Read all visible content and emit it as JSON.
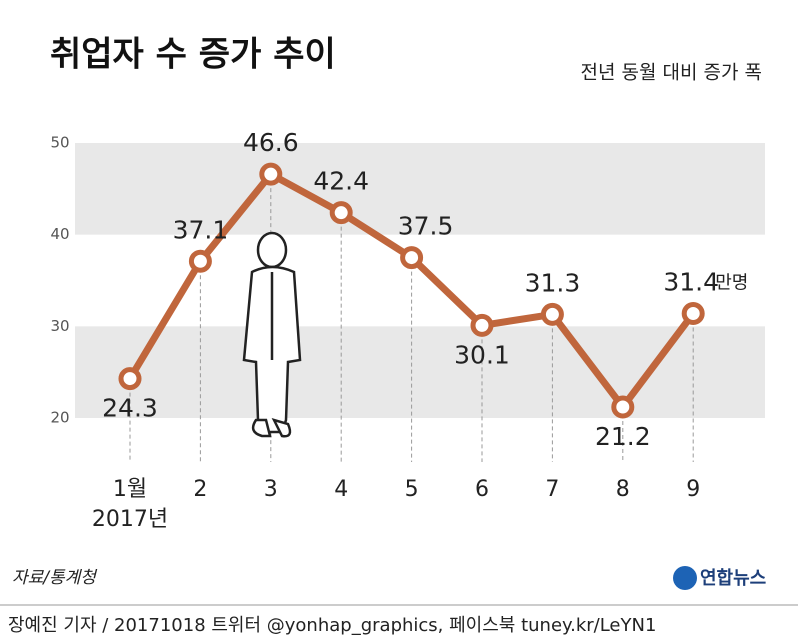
{
  "chart_data": {
    "type": "line",
    "title": "취업자 수 증가 추이",
    "subtitle": "전년 동월 대비 증가 폭",
    "categories": [
      "1월",
      "2",
      "3",
      "4",
      "5",
      "6",
      "7",
      "8",
      "9"
    ],
    "x_note": "2017년",
    "values": [
      24.3,
      37.1,
      46.6,
      42.4,
      37.5,
      30.1,
      31.3,
      21.2,
      31.4
    ],
    "unit": "만명",
    "color": "#c0663c",
    "ylim": [
      20,
      50
    ],
    "yticks": [
      20,
      30,
      40,
      50
    ],
    "bands": true,
    "source": "자료/통계청",
    "logo": "연합뉴스",
    "footer": "장예진 기자 / 20171018 트위터 @yonhap_graphics, 페이스북 tuney.kr/LeYN1"
  }
}
